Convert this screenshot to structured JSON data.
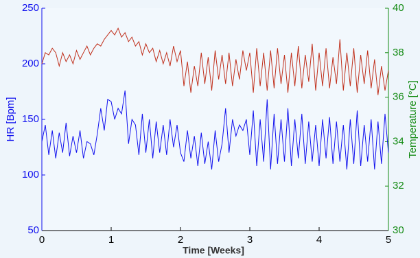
{
  "chart_data": {
    "type": "line",
    "xlabel": "Time [Weeks]",
    "ylabel": "HR [Bpm]",
    "y2label": "Temperature [°C]",
    "x": [
      0,
      0.05,
      0.1,
      0.15,
      0.2,
      0.25,
      0.3,
      0.35,
      0.4,
      0.45,
      0.5,
      0.55,
      0.6,
      0.65,
      0.7,
      0.75,
      0.8,
      0.85,
      0.9,
      0.95,
      1,
      1.05,
      1.1,
      1.15,
      1.2,
      1.25,
      1.3,
      1.35,
      1.4,
      1.45,
      1.5,
      1.55,
      1.6,
      1.65,
      1.7,
      1.75,
      1.8,
      1.85,
      1.9,
      1.95,
      2,
      2.05,
      2.1,
      2.15,
      2.2,
      2.25,
      2.3,
      2.35,
      2.4,
      2.45,
      2.5,
      2.55,
      2.6,
      2.65,
      2.7,
      2.75,
      2.8,
      2.85,
      2.9,
      2.95,
      3,
      3.05,
      3.1,
      3.15,
      3.2,
      3.25,
      3.3,
      3.35,
      3.4,
      3.45,
      3.5,
      3.55,
      3.6,
      3.65,
      3.7,
      3.75,
      3.8,
      3.85,
      3.9,
      3.95,
      4,
      4.05,
      4.1,
      4.15,
      4.2,
      4.25,
      4.3,
      4.35,
      4.4,
      4.45,
      4.5,
      4.55,
      4.6,
      4.65,
      4.7,
      4.75,
      4.8,
      4.85,
      4.9,
      4.95,
      5
    ],
    "series": [
      {
        "name": "HR",
        "color": "#1010ee",
        "axis": "y",
        "values": [
          130,
          145,
          118,
          140,
          115,
          138,
          120,
          147,
          117,
          135,
          120,
          140,
          115,
          130,
          128,
          118,
          137,
          160,
          140,
          168,
          166,
          150,
          160,
          155,
          176,
          128,
          150,
          145,
          118,
          155,
          120,
          150,
          115,
          148,
          120,
          145,
          118,
          150,
          125,
          145,
          120,
          112,
          140,
          115,
          135,
          108,
          138,
          110,
          130,
          105,
          140,
          112,
          128,
          160,
          120,
          150,
          135,
          145,
          140,
          150,
          118,
          158,
          108,
          150,
          112,
          168,
          105,
          155,
          110,
          150,
          112,
          160,
          108,
          150,
          115,
          155,
          110,
          148,
          112,
          145,
          108,
          150,
          115,
          152,
          110,
          148,
          112,
          145,
          105,
          150,
          110,
          158,
          108,
          145,
          112,
          150,
          105,
          148,
          110,
          155,
          120
        ]
      },
      {
        "name": "Temperature",
        "color": "#c0301c",
        "axis": "y2",
        "values": [
          37.5,
          38.0,
          37.9,
          38.2,
          38.0,
          37.4,
          38.0,
          37.6,
          37.9,
          37.5,
          38.1,
          37.7,
          38.0,
          38.3,
          37.9,
          38.2,
          38.4,
          38.3,
          38.6,
          38.8,
          39.0,
          38.8,
          39.1,
          38.7,
          38.9,
          38.5,
          38.7,
          38.3,
          38.5,
          37.9,
          38.4,
          38.0,
          38.2,
          37.6,
          38.1,
          37.5,
          38.0,
          37.4,
          38.3,
          37.6,
          38.1,
          36.5,
          37.6,
          36.2,
          37.4,
          36.5,
          38.0,
          36.6,
          37.8,
          36.3,
          38.1,
          36.8,
          37.9,
          36.6,
          38.0,
          36.5,
          37.7,
          36.8,
          38.1,
          37.2,
          38.0,
          36.2,
          38.2,
          36.5,
          38.0,
          36.3,
          38.1,
          36.4,
          38.2,
          36.6,
          37.9,
          36.2,
          38.0,
          36.5,
          38.3,
          36.4,
          37.9,
          36.7,
          38.4,
          36.3,
          38.0,
          36.5,
          38.2,
          36.4,
          37.8,
          36.6,
          38.6,
          36.3,
          38.0,
          36.5,
          38.2,
          36.2,
          37.9,
          36.6,
          38.1,
          36.4,
          37.7,
          36.1,
          37.4,
          36.3,
          37.2
        ]
      }
    ],
    "xlim": [
      0,
      5
    ],
    "xticks": [
      0,
      1,
      2,
      3,
      4,
      5
    ],
    "ylim": [
      50,
      250
    ],
    "yticks": [
      50,
      100,
      150,
      200,
      250
    ],
    "ycolor": "#1010ee",
    "y2lim": [
      30,
      40
    ],
    "y2ticks": [
      30,
      32,
      34,
      36,
      38,
      40
    ],
    "y2color": "#128a12"
  }
}
